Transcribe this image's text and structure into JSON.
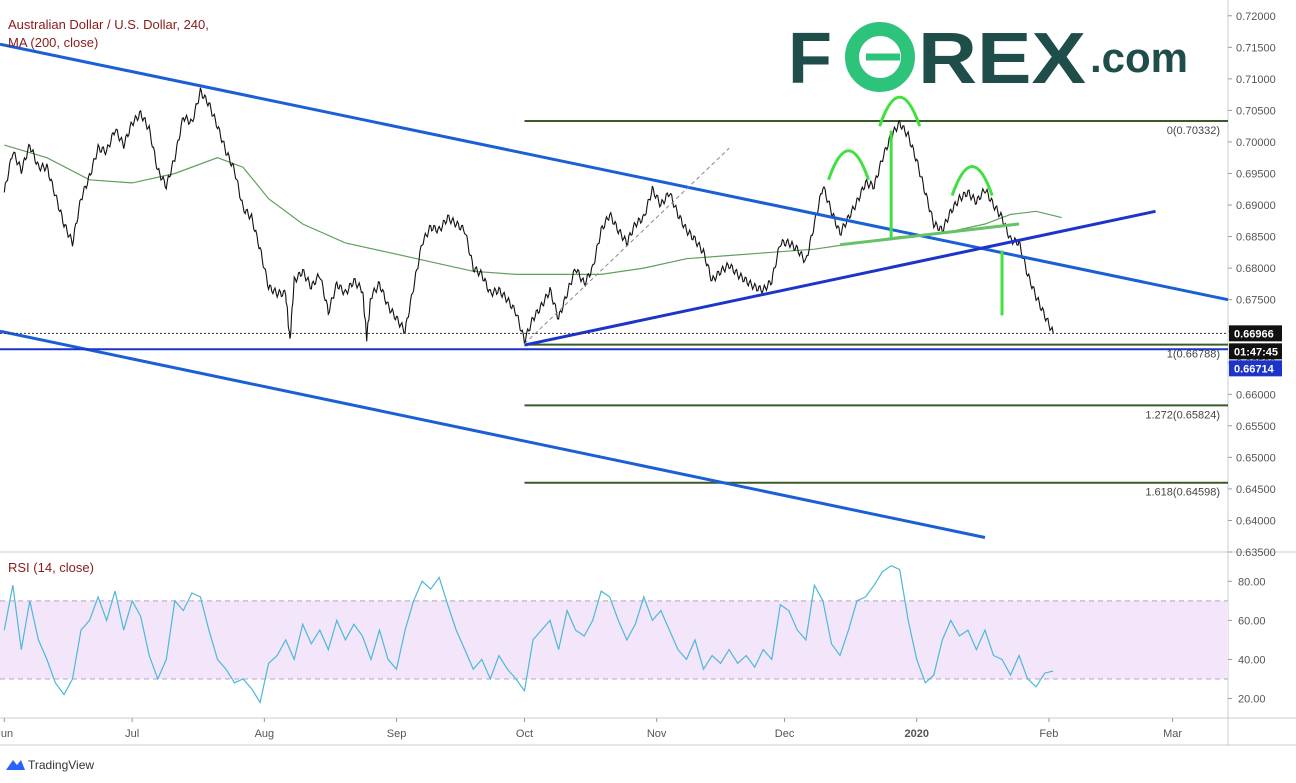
{
  "chart_data": {
    "type": "line",
    "title": "Australian Dollar / U.S. Dollar, 240,",
    "indicator_label": "MA (200, close)",
    "watermark": "FOREX.com",
    "price_axis": {
      "range": [
        0.635,
        0.7225
      ],
      "ticks": [
        "0.72000",
        "0.71500",
        "0.71000",
        "0.70500",
        "0.70000",
        "0.69500",
        "0.69000",
        "0.68500",
        "0.68000",
        "0.67500",
        "0.67000",
        "0.66500",
        "0.66000",
        "0.65500",
        "0.65000",
        "0.64500",
        "0.64000",
        "0.63500"
      ]
    },
    "price_badges": [
      {
        "label": "0.66966",
        "value": 0.66966,
        "style": "black"
      },
      {
        "label": "01:47:45",
        "value": 0.66845,
        "style": "black"
      },
      {
        "label": "0.66714",
        "value": 0.66714,
        "style": "blue"
      }
    ],
    "x_axis": {
      "labels": [
        {
          "label": "Jun",
          "day": 0
        },
        {
          "label": "Jul",
          "day": 30
        },
        {
          "label": "Aug",
          "day": 61
        },
        {
          "label": "Sep",
          "day": 92
        },
        {
          "label": "Oct",
          "day": 122
        },
        {
          "label": "Nov",
          "day": 153
        },
        {
          "label": "Dec",
          "day": 183
        },
        {
          "label": "2020",
          "day": 214
        },
        {
          "label": "Feb",
          "day": 245
        },
        {
          "label": "Mar",
          "day": 274
        }
      ],
      "range": [
        -1,
        287
      ]
    },
    "price_series": [
      {
        "day": 0,
        "v": 0.692
      },
      {
        "day": 2,
        "v": 0.6985
      },
      {
        "day": 4,
        "v": 0.6955
      },
      {
        "day": 6,
        "v": 0.6995
      },
      {
        "day": 8,
        "v": 0.696
      },
      {
        "day": 10,
        "v": 0.696
      },
      {
        "day": 12,
        "v": 0.6915
      },
      {
        "day": 14,
        "v": 0.687
      },
      {
        "day": 16,
        "v": 0.684
      },
      {
        "day": 18,
        "v": 0.691
      },
      {
        "day": 20,
        "v": 0.6945
      },
      {
        "day": 22,
        "v": 0.699
      },
      {
        "day": 24,
        "v": 0.6985
      },
      {
        "day": 26,
        "v": 0.702
      },
      {
        "day": 28,
        "v": 0.6995
      },
      {
        "day": 30,
        "v": 0.703
      },
      {
        "day": 32,
        "v": 0.7045
      },
      {
        "day": 34,
        "v": 0.702
      },
      {
        "day": 36,
        "v": 0.6955
      },
      {
        "day": 38,
        "v": 0.693
      },
      {
        "day": 40,
        "v": 0.6975
      },
      {
        "day": 42,
        "v": 0.704
      },
      {
        "day": 44,
        "v": 0.703
      },
      {
        "day": 46,
        "v": 0.708
      },
      {
        "day": 48,
        "v": 0.706
      },
      {
        "day": 50,
        "v": 0.7025
      },
      {
        "day": 52,
        "v": 0.6985
      },
      {
        "day": 54,
        "v": 0.6955
      },
      {
        "day": 56,
        "v": 0.6895
      },
      {
        "day": 58,
        "v": 0.688
      },
      {
        "day": 60,
        "v": 0.683
      },
      {
        "day": 62,
        "v": 0.677
      },
      {
        "day": 64,
        "v": 0.676
      },
      {
        "day": 66,
        "v": 0.676
      },
      {
        "day": 67,
        "v": 0.6685
      },
      {
        "day": 68,
        "v": 0.678
      },
      {
        "day": 70,
        "v": 0.6795
      },
      {
        "day": 72,
        "v": 0.677
      },
      {
        "day": 74,
        "v": 0.679
      },
      {
        "day": 76,
        "v": 0.673
      },
      {
        "day": 78,
        "v": 0.6775
      },
      {
        "day": 80,
        "v": 0.676
      },
      {
        "day": 82,
        "v": 0.678
      },
      {
        "day": 84,
        "v": 0.6765
      },
      {
        "day": 85,
        "v": 0.669
      },
      {
        "day": 86,
        "v": 0.6755
      },
      {
        "day": 88,
        "v": 0.6775
      },
      {
        "day": 90,
        "v": 0.674
      },
      {
        "day": 92,
        "v": 0.672
      },
      {
        "day": 94,
        "v": 0.67
      },
      {
        "day": 96,
        "v": 0.677
      },
      {
        "day": 98,
        "v": 0.684
      },
      {
        "day": 100,
        "v": 0.6865
      },
      {
        "day": 102,
        "v": 0.686
      },
      {
        "day": 104,
        "v": 0.688
      },
      {
        "day": 106,
        "v": 0.687
      },
      {
        "day": 108,
        "v": 0.686
      },
      {
        "day": 110,
        "v": 0.68
      },
      {
        "day": 112,
        "v": 0.679
      },
      {
        "day": 114,
        "v": 0.676
      },
      {
        "day": 116,
        "v": 0.6765
      },
      {
        "day": 118,
        "v": 0.675
      },
      {
        "day": 120,
        "v": 0.673
      },
      {
        "day": 122,
        "v": 0.6685
      },
      {
        "day": 124,
        "v": 0.672
      },
      {
        "day": 126,
        "v": 0.674
      },
      {
        "day": 128,
        "v": 0.6765
      },
      {
        "day": 130,
        "v": 0.672
      },
      {
        "day": 132,
        "v": 0.676
      },
      {
        "day": 134,
        "v": 0.68
      },
      {
        "day": 136,
        "v": 0.6775
      },
      {
        "day": 138,
        "v": 0.68
      },
      {
        "day": 140,
        "v": 0.686
      },
      {
        "day": 142,
        "v": 0.6885
      },
      {
        "day": 144,
        "v": 0.686
      },
      {
        "day": 146,
        "v": 0.684
      },
      {
        "day": 148,
        "v": 0.687
      },
      {
        "day": 150,
        "v": 0.688
      },
      {
        "day": 152,
        "v": 0.6925
      },
      {
        "day": 154,
        "v": 0.69
      },
      {
        "day": 156,
        "v": 0.692
      },
      {
        "day": 158,
        "v": 0.6885
      },
      {
        "day": 160,
        "v": 0.686
      },
      {
        "day": 162,
        "v": 0.6845
      },
      {
        "day": 164,
        "v": 0.6825
      },
      {
        "day": 166,
        "v": 0.678
      },
      {
        "day": 168,
        "v": 0.6795
      },
      {
        "day": 170,
        "v": 0.6805
      },
      {
        "day": 172,
        "v": 0.679
      },
      {
        "day": 174,
        "v": 0.678
      },
      {
        "day": 176,
        "v": 0.677
      },
      {
        "day": 178,
        "v": 0.6765
      },
      {
        "day": 180,
        "v": 0.678
      },
      {
        "day": 182,
        "v": 0.684
      },
      {
        "day": 184,
        "v": 0.684
      },
      {
        "day": 186,
        "v": 0.683
      },
      {
        "day": 188,
        "v": 0.681
      },
      {
        "day": 190,
        "v": 0.687
      },
      {
        "day": 192,
        "v": 0.693
      },
      {
        "day": 194,
        "v": 0.689
      },
      {
        "day": 196,
        "v": 0.6855
      },
      {
        "day": 198,
        "v": 0.688
      },
      {
        "day": 200,
        "v": 0.6905
      },
      {
        "day": 202,
        "v": 0.6935
      },
      {
        "day": 204,
        "v": 0.693
      },
      {
        "day": 206,
        "v": 0.6975
      },
      {
        "day": 208,
        "v": 0.701
      },
      {
        "day": 210,
        "v": 0.703
      },
      {
        "day": 212,
        "v": 0.701
      },
      {
        "day": 214,
        "v": 0.697
      },
      {
        "day": 216,
        "v": 0.692
      },
      {
        "day": 218,
        "v": 0.687
      },
      {
        "day": 220,
        "v": 0.686
      },
      {
        "day": 222,
        "v": 0.689
      },
      {
        "day": 224,
        "v": 0.691
      },
      {
        "day": 226,
        "v": 0.692
      },
      {
        "day": 228,
        "v": 0.6905
      },
      {
        "day": 230,
        "v": 0.6925
      },
      {
        "day": 232,
        "v": 0.69
      },
      {
        "day": 234,
        "v": 0.688
      },
      {
        "day": 236,
        "v": 0.6845
      },
      {
        "day": 238,
        "v": 0.684
      },
      {
        "day": 240,
        "v": 0.679
      },
      {
        "day": 242,
        "v": 0.6755
      },
      {
        "day": 244,
        "v": 0.6725
      },
      {
        "day": 246,
        "v": 0.6697
      }
    ],
    "ma_series": [
      {
        "day": 0,
        "v": 0.6995
      },
      {
        "day": 10,
        "v": 0.6975
      },
      {
        "day": 20,
        "v": 0.694
      },
      {
        "day": 30,
        "v": 0.6935
      },
      {
        "day": 40,
        "v": 0.695
      },
      {
        "day": 50,
        "v": 0.6975
      },
      {
        "day": 56,
        "v": 0.696
      },
      {
        "day": 62,
        "v": 0.691
      },
      {
        "day": 70,
        "v": 0.687
      },
      {
        "day": 80,
        "v": 0.684
      },
      {
        "day": 90,
        "v": 0.6825
      },
      {
        "day": 100,
        "v": 0.681
      },
      {
        "day": 110,
        "v": 0.6795
      },
      {
        "day": 120,
        "v": 0.679
      },
      {
        "day": 130,
        "v": 0.679
      },
      {
        "day": 140,
        "v": 0.679
      },
      {
        "day": 150,
        "v": 0.68
      },
      {
        "day": 160,
        "v": 0.6815
      },
      {
        "day": 170,
        "v": 0.682
      },
      {
        "day": 180,
        "v": 0.6825
      },
      {
        "day": 190,
        "v": 0.683
      },
      {
        "day": 200,
        "v": 0.684
      },
      {
        "day": 210,
        "v": 0.685
      },
      {
        "day": 220,
        "v": 0.6855
      },
      {
        "day": 230,
        "v": 0.687
      },
      {
        "day": 236,
        "v": 0.6885
      },
      {
        "day": 242,
        "v": 0.689
      },
      {
        "day": 248,
        "v": 0.688
      }
    ],
    "trendlines": [
      {
        "name": "upper-downtrend",
        "x1": -1,
        "y1": 0.7155,
        "x2": 287,
        "y2": 0.675
      },
      {
        "name": "lower-downtrend",
        "x1": -1,
        "y1": 0.67,
        "x2": 230,
        "y2": 0.6373
      },
      {
        "name": "uptrend-support",
        "x1": 122,
        "y1": 0.6678,
        "x2": 270,
        "y2": 0.689
      },
      {
        "name": "horizontal-support",
        "x1": -1,
        "y1": 0.66714,
        "x2": 287,
        "y2": 0.66714
      },
      {
        "name": "neckline",
        "x1": 196,
        "y1": 0.6837,
        "x2": 238,
        "y2": 0.687
      },
      {
        "name": "projection-dashed",
        "x1": 122,
        "y1": 0.668,
        "x2": 170,
        "y2": 0.699
      }
    ],
    "fibonacci": {
      "day_start": 122,
      "day_end": 287,
      "levels": [
        {
          "label": "0(0.70332)",
          "value": 0.70332
        },
        {
          "label": "1(0.66788)",
          "value": 0.66788
        },
        {
          "label": "1.272(0.65824)",
          "value": 0.65824
        },
        {
          "label": "1.618(0.64598)",
          "value": 0.64598
        }
      ]
    },
    "head_and_shoulders": {
      "left_shoulder_day": 198,
      "head_day": 210,
      "right_shoulder_day": 227,
      "head_top": 0.703,
      "neckline_at_head": 0.6848,
      "breakdown_day": 234,
      "target": 0.6725
    },
    "rsi": {
      "label": "RSI (14, close)",
      "range": [
        10,
        95
      ],
      "band": [
        30,
        70
      ],
      "ticks": [
        "80.00",
        "60.00",
        "40.00",
        "20.00"
      ],
      "series": [
        {
          "day": 0,
          "v": 55
        },
        {
          "day": 2,
          "v": 78
        },
        {
          "day": 4,
          "v": 45
        },
        {
          "day": 6,
          "v": 70
        },
        {
          "day": 8,
          "v": 50
        },
        {
          "day": 10,
          "v": 40
        },
        {
          "day": 12,
          "v": 28
        },
        {
          "day": 14,
          "v": 22
        },
        {
          "day": 16,
          "v": 30
        },
        {
          "day": 18,
          "v": 55
        },
        {
          "day": 20,
          "v": 60
        },
        {
          "day": 22,
          "v": 72
        },
        {
          "day": 24,
          "v": 60
        },
        {
          "day": 26,
          "v": 75
        },
        {
          "day": 28,
          "v": 55
        },
        {
          "day": 30,
          "v": 70
        },
        {
          "day": 32,
          "v": 62
        },
        {
          "day": 34,
          "v": 42
        },
        {
          "day": 36,
          "v": 30
        },
        {
          "day": 38,
          "v": 40
        },
        {
          "day": 40,
          "v": 70
        },
        {
          "day": 42,
          "v": 65
        },
        {
          "day": 44,
          "v": 74
        },
        {
          "day": 46,
          "v": 72
        },
        {
          "day": 48,
          "v": 55
        },
        {
          "day": 50,
          "v": 40
        },
        {
          "day": 52,
          "v": 35
        },
        {
          "day": 54,
          "v": 28
        },
        {
          "day": 56,
          "v": 30
        },
        {
          "day": 58,
          "v": 25
        },
        {
          "day": 60,
          "v": 18
        },
        {
          "day": 62,
          "v": 38
        },
        {
          "day": 64,
          "v": 42
        },
        {
          "day": 66,
          "v": 50
        },
        {
          "day": 68,
          "v": 40
        },
        {
          "day": 70,
          "v": 58
        },
        {
          "day": 72,
          "v": 48
        },
        {
          "day": 74,
          "v": 55
        },
        {
          "day": 76,
          "v": 45
        },
        {
          "day": 78,
          "v": 60
        },
        {
          "day": 80,
          "v": 50
        },
        {
          "day": 82,
          "v": 58
        },
        {
          "day": 84,
          "v": 52
        },
        {
          "day": 86,
          "v": 40
        },
        {
          "day": 88,
          "v": 55
        },
        {
          "day": 90,
          "v": 40
        },
        {
          "day": 92,
          "v": 35
        },
        {
          "day": 94,
          "v": 55
        },
        {
          "day": 96,
          "v": 70
        },
        {
          "day": 98,
          "v": 80
        },
        {
          "day": 100,
          "v": 76
        },
        {
          "day": 102,
          "v": 82
        },
        {
          "day": 104,
          "v": 68
        },
        {
          "day": 106,
          "v": 55
        },
        {
          "day": 108,
          "v": 45
        },
        {
          "day": 110,
          "v": 35
        },
        {
          "day": 112,
          "v": 40
        },
        {
          "day": 114,
          "v": 30
        },
        {
          "day": 116,
          "v": 42
        },
        {
          "day": 118,
          "v": 35
        },
        {
          "day": 120,
          "v": 30
        },
        {
          "day": 122,
          "v": 24
        },
        {
          "day": 124,
          "v": 50
        },
        {
          "day": 126,
          "v": 55
        },
        {
          "day": 128,
          "v": 60
        },
        {
          "day": 130,
          "v": 45
        },
        {
          "day": 132,
          "v": 65
        },
        {
          "day": 134,
          "v": 55
        },
        {
          "day": 136,
          "v": 52
        },
        {
          "day": 138,
          "v": 60
        },
        {
          "day": 140,
          "v": 75
        },
        {
          "day": 142,
          "v": 72
        },
        {
          "day": 144,
          "v": 60
        },
        {
          "day": 146,
          "v": 50
        },
        {
          "day": 148,
          "v": 58
        },
        {
          "day": 150,
          "v": 72
        },
        {
          "day": 152,
          "v": 60
        },
        {
          "day": 154,
          "v": 65
        },
        {
          "day": 156,
          "v": 55
        },
        {
          "day": 158,
          "v": 45
        },
        {
          "day": 160,
          "v": 40
        },
        {
          "day": 162,
          "v": 50
        },
        {
          "day": 164,
          "v": 35
        },
        {
          "day": 166,
          "v": 42
        },
        {
          "day": 168,
          "v": 38
        },
        {
          "day": 170,
          "v": 45
        },
        {
          "day": 172,
          "v": 38
        },
        {
          "day": 174,
          "v": 42
        },
        {
          "day": 176,
          "v": 36
        },
        {
          "day": 178,
          "v": 45
        },
        {
          "day": 180,
          "v": 40
        },
        {
          "day": 182,
          "v": 68
        },
        {
          "day": 184,
          "v": 65
        },
        {
          "day": 186,
          "v": 55
        },
        {
          "day": 188,
          "v": 50
        },
        {
          "day": 190,
          "v": 78
        },
        {
          "day": 192,
          "v": 70
        },
        {
          "day": 194,
          "v": 48
        },
        {
          "day": 196,
          "v": 42
        },
        {
          "day": 198,
          "v": 55
        },
        {
          "day": 200,
          "v": 70
        },
        {
          "day": 202,
          "v": 72
        },
        {
          "day": 204,
          "v": 78
        },
        {
          "day": 206,
          "v": 85
        },
        {
          "day": 208,
          "v": 88
        },
        {
          "day": 210,
          "v": 86
        },
        {
          "day": 212,
          "v": 60
        },
        {
          "day": 214,
          "v": 40
        },
        {
          "day": 216,
          "v": 28
        },
        {
          "day": 218,
          "v": 32
        },
        {
          "day": 220,
          "v": 50
        },
        {
          "day": 222,
          "v": 60
        },
        {
          "day": 224,
          "v": 52
        },
        {
          "day": 226,
          "v": 55
        },
        {
          "day": 228,
          "v": 45
        },
        {
          "day": 230,
          "v": 55
        },
        {
          "day": 232,
          "v": 42
        },
        {
          "day": 234,
          "v": 40
        },
        {
          "day": 236,
          "v": 32
        },
        {
          "day": 238,
          "v": 42
        },
        {
          "day": 240,
          "v": 30
        },
        {
          "day": 242,
          "v": 26
        },
        {
          "day": 244,
          "v": 33
        },
        {
          "day": 246,
          "v": 34
        }
      ]
    }
  },
  "footer": {
    "brand": "TradingView"
  },
  "colors": {
    "price": "#111111",
    "ma": "#5fa05a",
    "trend": "#1a5fd6",
    "trend_dark": "#1c34c8",
    "fib": "#3a5a2a",
    "pattern": "#3fe03f",
    "rsi": "#4db8d8",
    "rsi_band": "#f3e6fb",
    "watermark_dark": "#1f4d4a",
    "watermark_green": "#2ec37a"
  }
}
